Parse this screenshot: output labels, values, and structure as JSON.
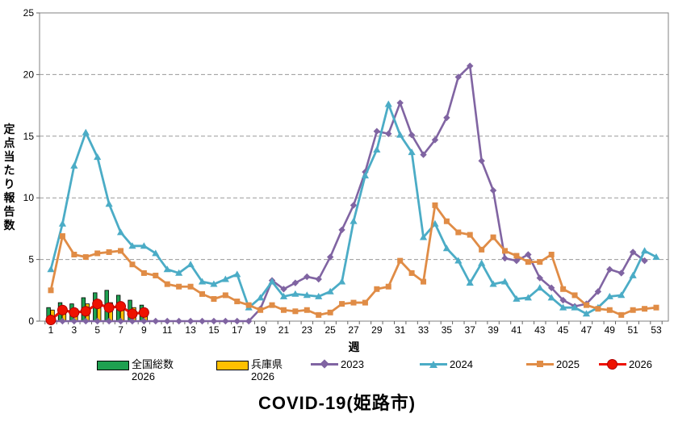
{
  "chart": {
    "title": "COVID-19(姫路市)",
    "x_axis_title": "週",
    "y_axis_title": "定点当たり報告数",
    "y_ticks": [
      0,
      5,
      10,
      15,
      20,
      25
    ],
    "x_tick_labels": [
      "1",
      "3",
      "5",
      "7",
      "9",
      "11",
      "13",
      "15",
      "17",
      "19",
      "21",
      "23",
      "25",
      "27",
      "29",
      "31",
      "33",
      "35",
      "37",
      "39",
      "41",
      "43",
      "45",
      "47",
      "49",
      "51",
      "53"
    ]
  },
  "colors": {
    "s2023": "#8064A2",
    "s2024": "#4BACC6",
    "s2025": "#E08C46",
    "s2026": "#EE1100",
    "bar_national": "#1EA050",
    "bar_hyogo": "#FFC000",
    "gridline": "#999999",
    "border": "#808080",
    "tick": "#666666"
  },
  "legend": {
    "items": [
      {
        "label": "全国総数",
        "sublabel": "2026",
        "type": "bar",
        "color_key": "bar_national"
      },
      {
        "label": "兵庫県",
        "sublabel": "2026",
        "type": "bar",
        "color_key": "bar_hyogo"
      },
      {
        "label": "2023",
        "sublabel": "",
        "type": "line",
        "marker": "diamond",
        "color_key": "s2023"
      },
      {
        "label": "2024",
        "sublabel": "",
        "type": "line",
        "marker": "triangle",
        "color_key": "s2024"
      },
      {
        "label": "2025",
        "sublabel": "",
        "type": "line",
        "marker": "square",
        "color_key": "s2025"
      },
      {
        "label": "2026",
        "sublabel": "",
        "type": "line",
        "marker": "circle",
        "color_key": "s2026"
      }
    ]
  },
  "chart_data": {
    "type": "bar+line",
    "title": "COVID-19(姫路市)",
    "xlabel": "週",
    "ylabel": "定点当たり報告数",
    "xlim": [
      1,
      53
    ],
    "ylim": [
      0,
      25
    ],
    "grid": "dashed horizontal at 5,10,15,20",
    "legend_position": "bottom",
    "bar_series": [
      {
        "name": "全国総数 2026",
        "color_key": "bar_national",
        "start_week": 1,
        "values": [
          1.1,
          1.5,
          1.4,
          1.9,
          2.3,
          2.5,
          2.1,
          1.7,
          1.3
        ]
      },
      {
        "name": "兵庫県 2026",
        "color_key": "bar_hyogo",
        "start_week": 1,
        "values": [
          0.9,
          1.0,
          1.0,
          1.4,
          1.5,
          1.5,
          1.3,
          1.1,
          1.0
        ]
      }
    ],
    "line_series": [
      {
        "name": "2023",
        "color_key": "s2023",
        "marker": "diamond",
        "start_week": 1,
        "values": [
          0,
          0,
          0,
          0,
          0,
          0,
          0,
          0,
          0,
          0,
          0,
          0,
          0,
          0,
          0,
          0,
          0,
          0,
          1.0,
          3.3,
          2.6,
          3.1,
          3.6,
          3.4,
          5.2,
          7.4,
          9.4,
          12.1,
          15.4,
          15.2,
          17.7,
          15.1,
          13.5,
          14.7,
          16.5,
          19.8,
          20.7,
          13.0,
          10.6,
          5.1,
          4.9,
          5.4,
          3.5,
          2.7,
          1.7,
          1.2,
          1.4,
          2.4,
          4.2,
          3.9,
          5.6,
          4.9
        ]
      },
      {
        "name": "2024",
        "color_key": "s2024",
        "marker": "triangle",
        "start_week": 1,
        "values": [
          4.2,
          7.9,
          12.6,
          15.3,
          13.3,
          9.5,
          7.2,
          6.1,
          6.1,
          5.5,
          4.2,
          3.9,
          4.6,
          3.2,
          3.0,
          3.4,
          3.8,
          1.1,
          1.9,
          3.2,
          2.0,
          2.2,
          2.1,
          2.0,
          2.4,
          3.2,
          8.1,
          11.8,
          13.9,
          17.6,
          15.1,
          13.7,
          6.8,
          7.9,
          5.9,
          4.9,
          3.1,
          4.7,
          3.0,
          3.2,
          1.8,
          1.9,
          2.7,
          1.9,
          1.1,
          1.1,
          0.6,
          1.1,
          2.0,
          2.1,
          3.7,
          5.7,
          5.2
        ]
      },
      {
        "name": "2025",
        "color_key": "s2025",
        "marker": "square",
        "start_week": 1,
        "values": [
          2.5,
          6.9,
          5.4,
          5.2,
          5.5,
          5.6,
          5.7,
          4.6,
          3.9,
          3.7,
          3.0,
          2.8,
          2.8,
          2.2,
          1.8,
          2.1,
          1.6,
          1.3,
          0.9,
          1.3,
          0.9,
          0.8,
          0.9,
          0.5,
          0.7,
          1.4,
          1.5,
          1.5,
          2.6,
          2.8,
          4.9,
          3.9,
          3.2,
          9.4,
          8.1,
          7.2,
          7.0,
          5.8,
          6.8,
          5.7,
          5.3,
          4.8,
          4.8,
          5.4,
          2.6,
          2.1,
          1.3,
          1.0,
          0.9,
          0.5,
          0.9,
          1.0,
          1.1
        ]
      },
      {
        "name": "2026",
        "color_key": "s2026",
        "marker": "circle",
        "start_week": 1,
        "values": [
          0.1,
          0.9,
          0.7,
          0.8,
          1.4,
          1.1,
          1.2,
          0.6,
          0.7
        ]
      }
    ]
  }
}
